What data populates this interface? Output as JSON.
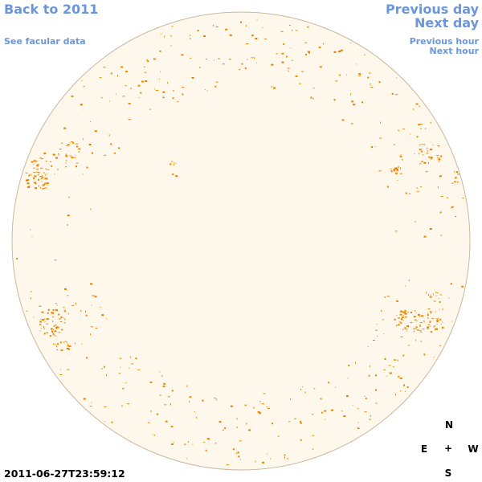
{
  "nav": {
    "back": "Back to 2011",
    "facular": "See facular data",
    "previous_day": "Previous day",
    "next_day": "Next day",
    "previous_hour": "Previous hour",
    "next_hour": "Next hour"
  },
  "timestamp": "2011-06-27T23:59:12",
  "compass": {
    "north": "N",
    "east": "E",
    "center": "+",
    "west": "W",
    "south": "S"
  }
}
